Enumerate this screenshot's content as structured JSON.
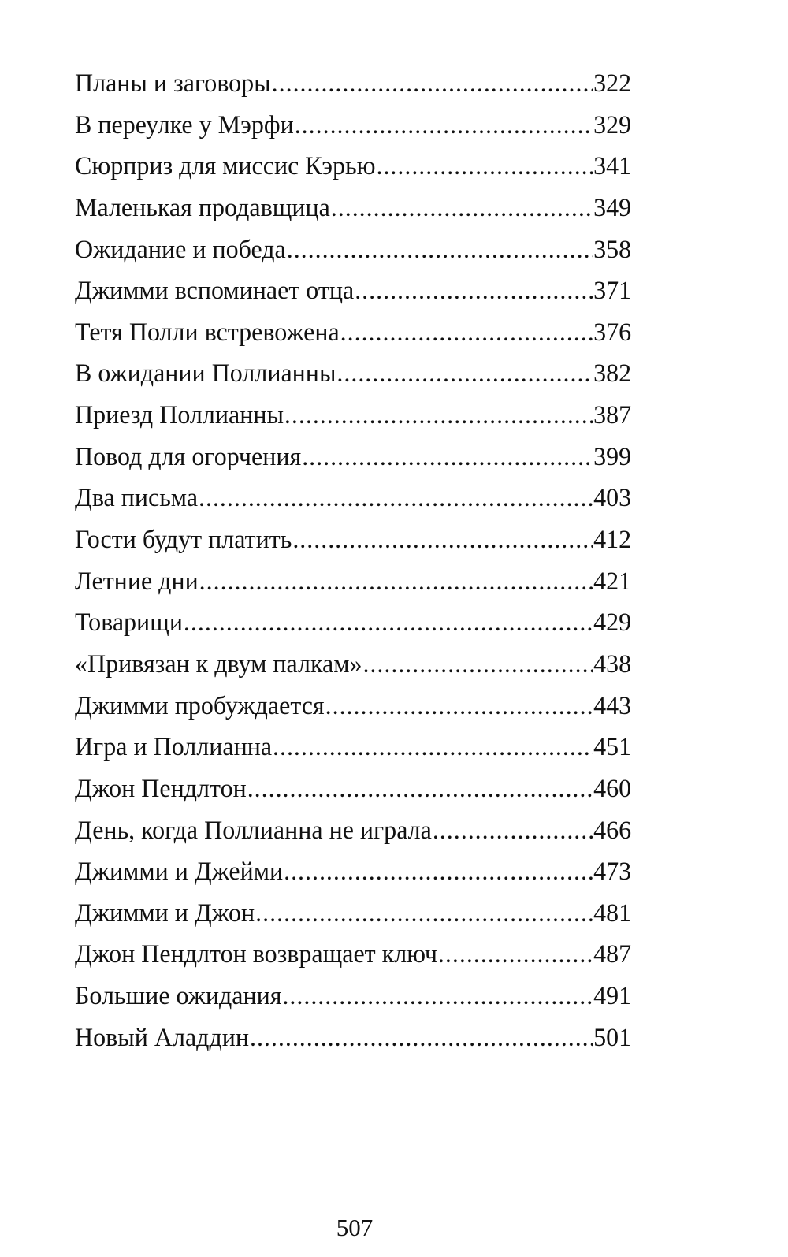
{
  "toc": [
    {
      "title": "Планы и заговоры",
      "page": "322"
    },
    {
      "title": "В переулке у Мэрфи ",
      "page": "329"
    },
    {
      "title": "Сюрприз для миссис Кэрью",
      "page": "341"
    },
    {
      "title": "Маленькая продавщица",
      "page": "349"
    },
    {
      "title": "Ожидание и победа ",
      "page": "358"
    },
    {
      "title": "Джимми вспоминает отца",
      "page": "371"
    },
    {
      "title": "Тетя Полли встревожена",
      "page": "376"
    },
    {
      "title": "В ожидании Поллианны ",
      "page": "382"
    },
    {
      "title": "Приезд Поллианны ",
      "page": "387"
    },
    {
      "title": "Повод для огорчения ",
      "page": "399"
    },
    {
      "title": "Два письма",
      "page": "403"
    },
    {
      "title": "Гости будут платить",
      "page": "412"
    },
    {
      "title": "Летние дни ",
      "page": "421"
    },
    {
      "title": "Товарищи",
      "page": "429"
    },
    {
      "title": "«Привязан к двум палкам» ",
      "page": "438"
    },
    {
      "title": "Джимми пробуждается ",
      "page": "443"
    },
    {
      "title": "Игра и Поллианна",
      "page": "451"
    },
    {
      "title": "Джон Пендлтон ",
      "page": "460"
    },
    {
      "title": "День, когда Поллианна не играла",
      "page": "466"
    },
    {
      "title": "Джимми и Джейми ",
      "page": "473"
    },
    {
      "title": "Джимми и Джон ",
      "page": "481"
    },
    {
      "title": "Джон Пендлтон возвращает ключ ",
      "page": "487"
    },
    {
      "title": "Большие ожидания",
      "page": "491"
    },
    {
      "title": "Новый Аладдин",
      "page": "501"
    }
  ],
  "footer": {
    "page_number": "507"
  }
}
